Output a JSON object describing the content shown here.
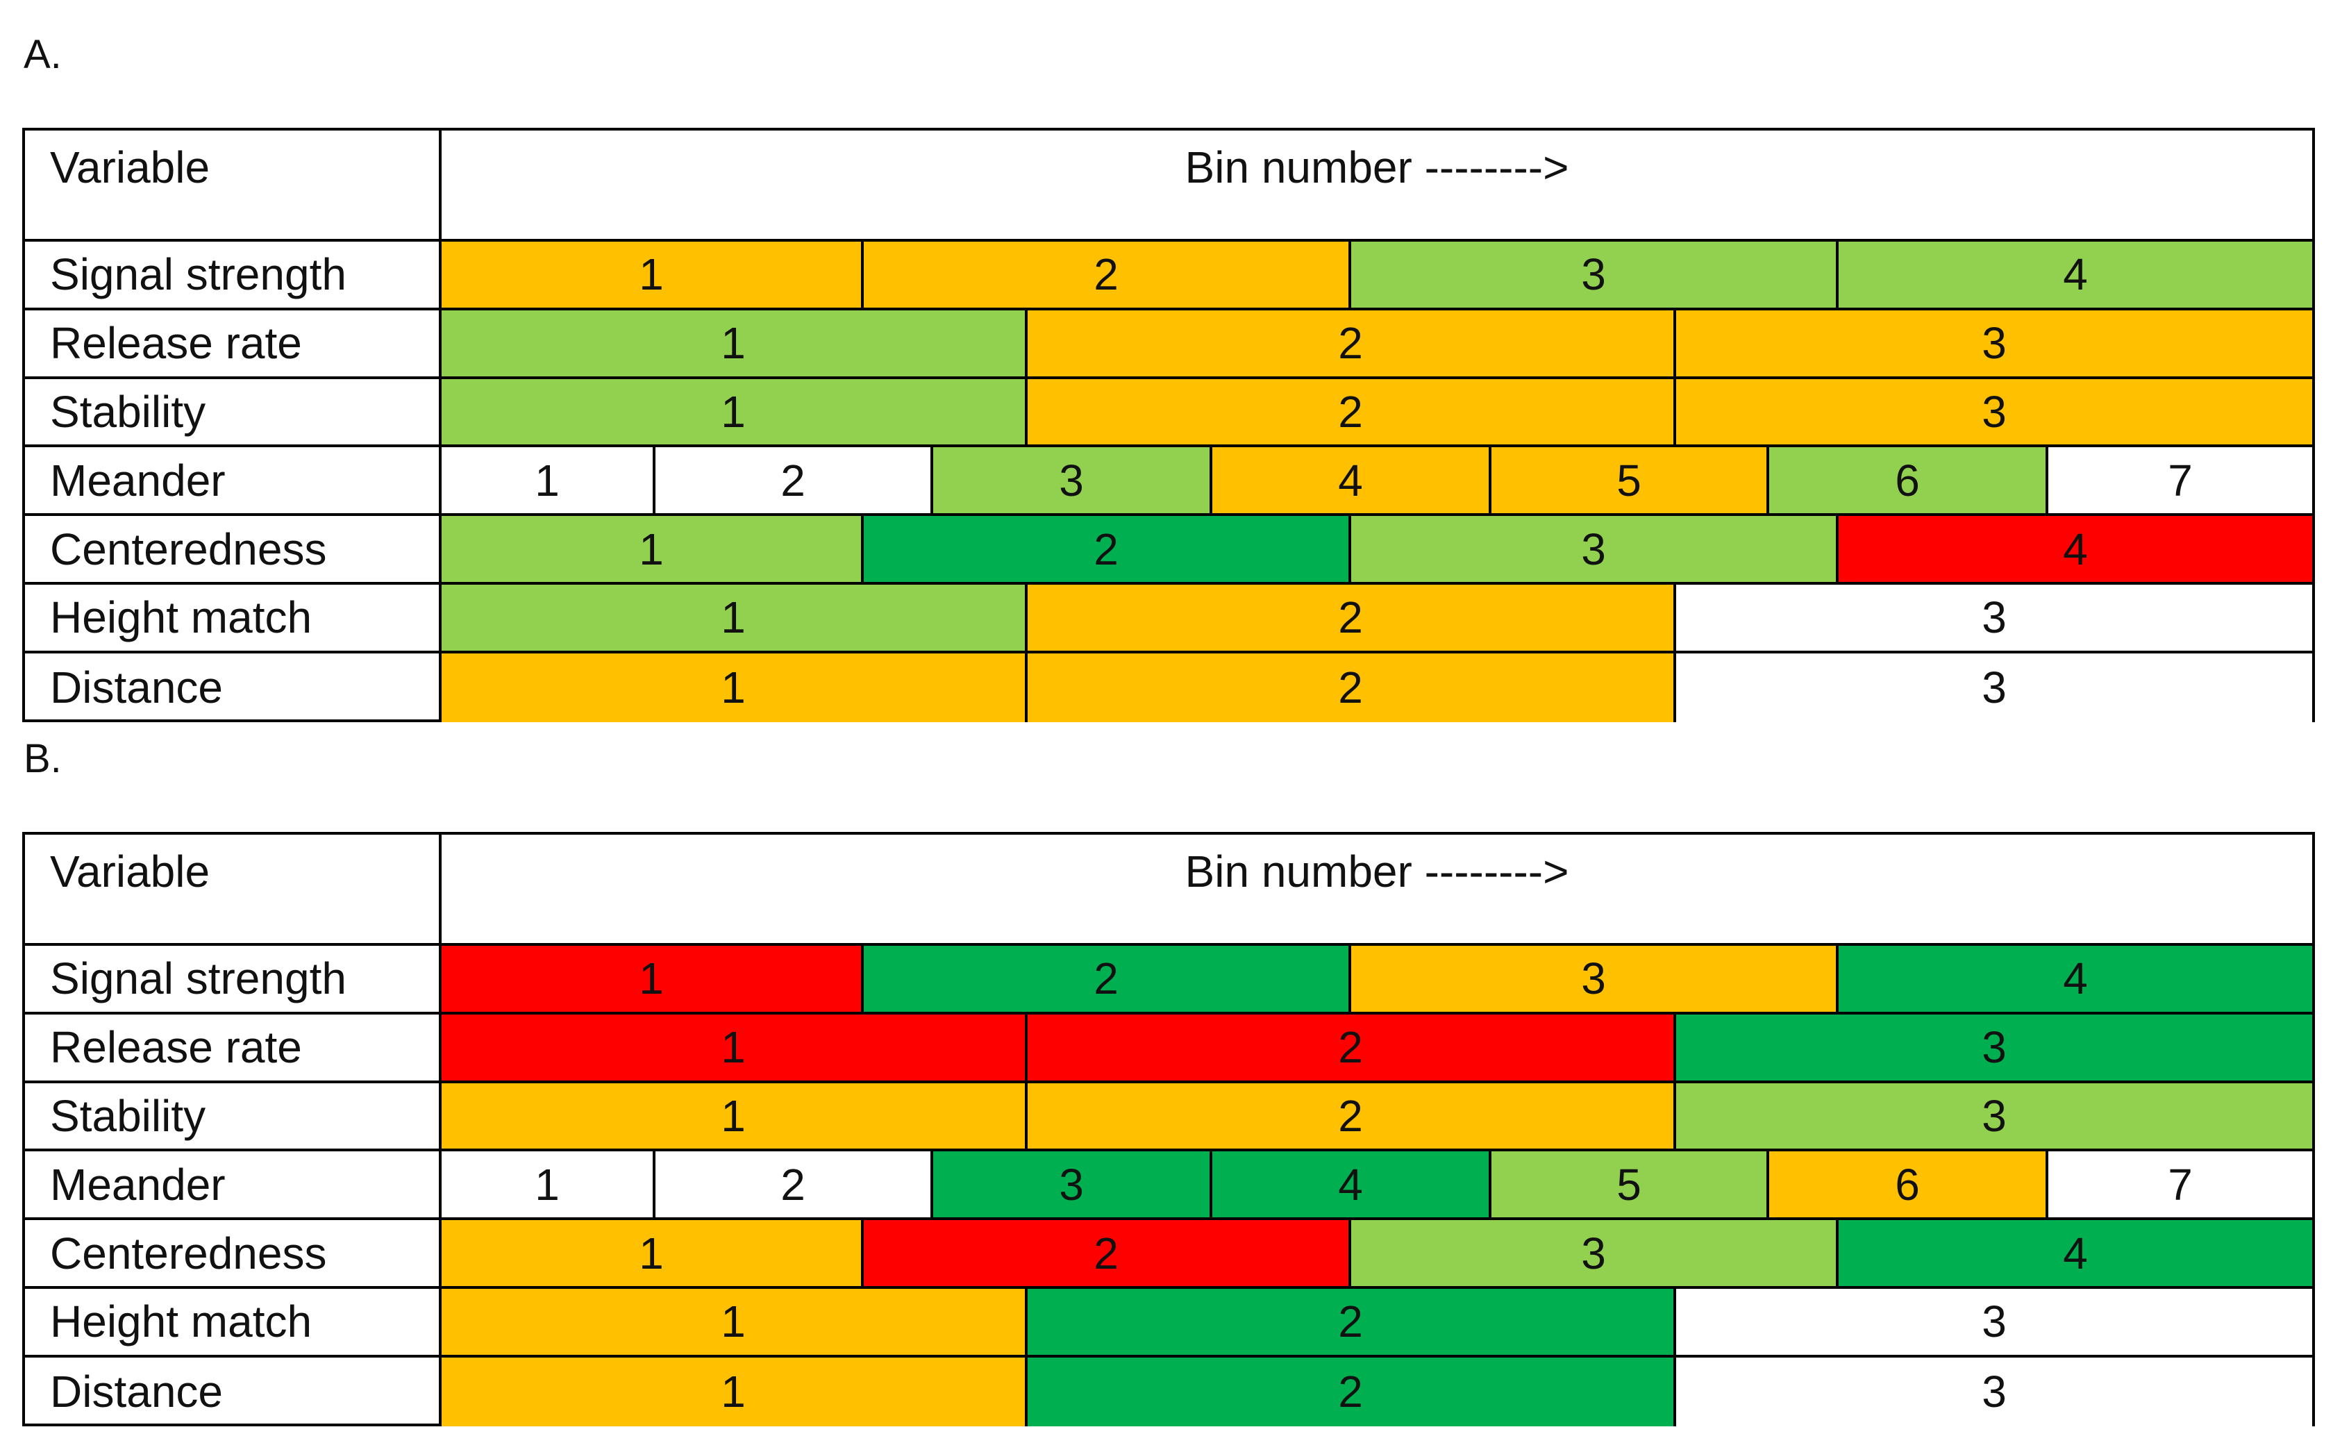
{
  "colors": {
    "orange": "#ffc000",
    "light_green": "#92d050",
    "dark_green": "#00b050",
    "red": "#ff0000",
    "white": "#ffffff"
  },
  "panels": [
    {
      "label": "A.",
      "header": {
        "variable": "Variable",
        "bin_title": "Bin number -------->"
      },
      "rows": [
        {
          "variable": "Signal strength",
          "bins": [
            {
              "label": "1",
              "color": "orange"
            },
            {
              "label": "2",
              "color": "orange"
            },
            {
              "label": "3",
              "color": "light_green"
            },
            {
              "label": "4",
              "color": "light_green"
            }
          ]
        },
        {
          "variable": "Release rate",
          "bins": [
            {
              "label": "1",
              "color": "light_green"
            },
            {
              "label": "2",
              "color": "orange"
            },
            {
              "label": "3",
              "color": "orange"
            }
          ]
        },
        {
          "variable": "Stability",
          "bins": [
            {
              "label": "1",
              "color": "light_green"
            },
            {
              "label": "2",
              "color": "orange"
            },
            {
              "label": "3",
              "color": "orange"
            }
          ]
        },
        {
          "variable": "Meander",
          "bins": [
            {
              "label": "1",
              "color": "white"
            },
            {
              "label": "2",
              "color": "white"
            },
            {
              "label": "3",
              "color": "light_green"
            },
            {
              "label": "4",
              "color": "orange"
            },
            {
              "label": "5",
              "color": "orange"
            },
            {
              "label": "6",
              "color": "light_green"
            },
            {
              "label": "7",
              "color": "white"
            }
          ]
        },
        {
          "variable": "Centeredness",
          "bins": [
            {
              "label": "1",
              "color": "light_green"
            },
            {
              "label": "2",
              "color": "dark_green"
            },
            {
              "label": "3",
              "color": "light_green"
            },
            {
              "label": "4",
              "color": "red"
            }
          ]
        },
        {
          "variable": "Height match",
          "bins": [
            {
              "label": "1",
              "color": "light_green"
            },
            {
              "label": "2",
              "color": "orange"
            },
            {
              "label": "3",
              "color": "white"
            }
          ]
        },
        {
          "variable": "Distance",
          "bins": [
            {
              "label": "1",
              "color": "orange"
            },
            {
              "label": "2",
              "color": "orange"
            },
            {
              "label": "3",
              "color": "white"
            }
          ]
        }
      ]
    },
    {
      "label": "B.",
      "header": {
        "variable": "Variable",
        "bin_title": "Bin number -------->"
      },
      "rows": [
        {
          "variable": "Signal strength",
          "bins": [
            {
              "label": "1",
              "color": "red"
            },
            {
              "label": "2",
              "color": "dark_green"
            },
            {
              "label": "3",
              "color": "orange"
            },
            {
              "label": "4",
              "color": "dark_green"
            }
          ]
        },
        {
          "variable": "Release rate",
          "bins": [
            {
              "label": "1",
              "color": "red"
            },
            {
              "label": "2",
              "color": "red"
            },
            {
              "label": "3",
              "color": "dark_green"
            }
          ]
        },
        {
          "variable": "Stability",
          "bins": [
            {
              "label": "1",
              "color": "orange"
            },
            {
              "label": "2",
              "color": "orange"
            },
            {
              "label": "3",
              "color": "light_green"
            }
          ]
        },
        {
          "variable": "Meander",
          "bins": [
            {
              "label": "1",
              "color": "white"
            },
            {
              "label": "2",
              "color": "white"
            },
            {
              "label": "3",
              "color": "dark_green"
            },
            {
              "label": "4",
              "color": "dark_green"
            },
            {
              "label": "5",
              "color": "light_green"
            },
            {
              "label": "6",
              "color": "orange"
            },
            {
              "label": "7",
              "color": "white"
            }
          ]
        },
        {
          "variable": "Centeredness",
          "bins": [
            {
              "label": "1",
              "color": "orange"
            },
            {
              "label": "2",
              "color": "red"
            },
            {
              "label": "3",
              "color": "light_green"
            },
            {
              "label": "4",
              "color": "dark_green"
            }
          ]
        },
        {
          "variable": "Height match",
          "bins": [
            {
              "label": "1",
              "color": "orange"
            },
            {
              "label": "2",
              "color": "dark_green"
            },
            {
              "label": "3",
              "color": "white"
            }
          ]
        },
        {
          "variable": "Distance",
          "bins": [
            {
              "label": "1",
              "color": "orange"
            },
            {
              "label": "2",
              "color": "dark_green"
            },
            {
              "label": "3",
              "color": "white"
            }
          ]
        }
      ]
    }
  ]
}
